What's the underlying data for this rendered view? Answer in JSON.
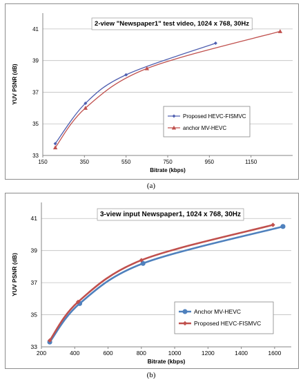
{
  "captions": [
    "(a)",
    "(b)"
  ],
  "chart_data": [
    {
      "type": "line",
      "title": "2-view \"Newspaper1\" test video, 1024 x 768, 30Hz",
      "xlabel": "Bitrate (kbps)",
      "ylabel": "YUV PSNR (dB)",
      "xlim": [
        150,
        1350
      ],
      "ylim": [
        33,
        42
      ],
      "xticks": [
        150,
        350,
        550,
        750,
        950,
        1150
      ],
      "yticks": [
        33,
        35,
        37,
        39,
        41
      ],
      "grid": true,
      "legend_position": "bottom-right",
      "series": [
        {
          "name": "Proposed HEVC-FISMVC",
          "color": "#4f5fb0",
          "marker": "diamond",
          "x": [
            210,
            355,
            550,
            980
          ],
          "y": [
            33.75,
            36.3,
            38.1,
            40.1
          ]
        },
        {
          "name": "anchor MV-HEVC",
          "color": "#c0504d",
          "marker": "triangle",
          "x": [
            210,
            355,
            650,
            1290
          ],
          "y": [
            33.5,
            36.0,
            38.5,
            40.85
          ]
        }
      ]
    },
    {
      "type": "line",
      "title": "3-view input Newspaper1, 1024 x 768, 30Hz",
      "xlabel": "Bitrate (kbps)",
      "ylabel": "YUV PSNR (dB)",
      "xlim": [
        200,
        1700
      ],
      "ylim": [
        33,
        42
      ],
      "xticks": [
        200,
        400,
        600,
        800,
        1000,
        1200,
        1400,
        1600
      ],
      "yticks": [
        33,
        35,
        37,
        39,
        41
      ],
      "grid": true,
      "legend_position": "bottom-right",
      "series": [
        {
          "name": "Anchor MV-HEVC",
          "color": "#4f81bd",
          "marker": "circle",
          "x": [
            250,
            430,
            810,
            1650
          ],
          "y": [
            33.3,
            35.7,
            38.2,
            40.5
          ]
        },
        {
          "name": "Proposed HEVC-FISMVC",
          "color": "#c0504d",
          "marker": "diamond",
          "x": [
            250,
            420,
            800,
            1590
          ],
          "y": [
            33.4,
            35.8,
            38.4,
            40.6
          ]
        }
      ]
    }
  ]
}
